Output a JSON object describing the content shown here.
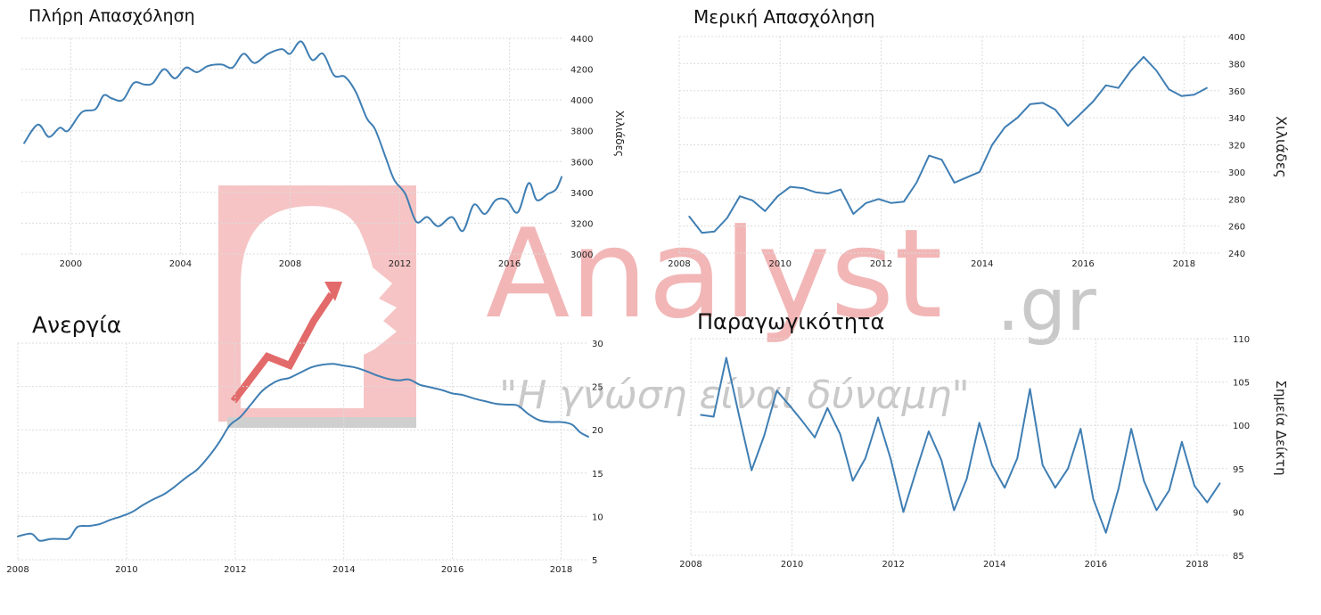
{
  "watermark": {
    "brand": "Analyst",
    "domain": ".gr",
    "slogan": "\"Η γνώση είναι δύναμη\""
  },
  "colors": {
    "line": "#3f7eb3",
    "grid": "#dcdcdc",
    "watermark": "#f2b6b6"
  },
  "chart_data": [
    {
      "type": "line",
      "title": "Πλήρη Απασχόληση",
      "ylabel": "Χιλιάδες",
      "xlim": [
        1998.2,
        2017.9
      ],
      "ylim": [
        3000,
        4400
      ],
      "xticks": [
        2000,
        2004,
        2008,
        2012,
        2016
      ],
      "yticks": [
        3000,
        3200,
        3400,
        3600,
        3800,
        4000,
        4200,
        4400
      ],
      "series": [
        {
          "x": [
            1998.3,
            1998.8,
            1999.2,
            1999.6,
            1999.9,
            2000.4,
            2000.9,
            2001.2,
            2001.5,
            2001.9,
            2002.3,
            2002.7,
            2003.0,
            2003.4,
            2003.8,
            2004.2,
            2004.6,
            2005.0,
            2005.5,
            2005.9,
            2006.3,
            2006.7,
            2007.2,
            2007.7,
            2008.0,
            2008.4,
            2008.8,
            2009.2,
            2009.6,
            2010.0,
            2010.4,
            2010.8,
            2011.1,
            2011.5,
            2011.8,
            2012.2,
            2012.6,
            2013.0,
            2013.4,
            2013.9,
            2014.3,
            2014.7,
            2015.1,
            2015.5,
            2015.9,
            2016.3,
            2016.7,
            2017.0,
            2017.4,
            2017.7,
            2017.9
          ],
          "y": [
            3720,
            3840,
            3760,
            3820,
            3800,
            3920,
            3940,
            4030,
            4010,
            4000,
            4110,
            4100,
            4110,
            4200,
            4140,
            4210,
            4180,
            4220,
            4230,
            4210,
            4300,
            4240,
            4300,
            4330,
            4300,
            4380,
            4260,
            4300,
            4160,
            4150,
            4050,
            3880,
            3810,
            3620,
            3480,
            3390,
            3210,
            3240,
            3180,
            3240,
            3150,
            3320,
            3260,
            3350,
            3350,
            3270,
            3460,
            3350,
            3390,
            3420,
            3500
          ]
        }
      ]
    },
    {
      "type": "line",
      "title": "Μερική Απασχόληση",
      "ylabel": "Χιλιάδες",
      "xlim": [
        2008.0,
        2018.7
      ],
      "ylim": [
        240,
        400
      ],
      "xticks": [
        2008,
        2010,
        2012,
        2014,
        2016,
        2018
      ],
      "yticks": [
        240,
        260,
        280,
        300,
        320,
        340,
        360,
        380,
        400
      ],
      "series": [
        {
          "x": [
            2008.2,
            2008.45,
            2008.7,
            2008.95,
            2009.2,
            2009.45,
            2009.7,
            2009.95,
            2010.2,
            2010.45,
            2010.7,
            2010.95,
            2011.2,
            2011.45,
            2011.7,
            2011.95,
            2012.2,
            2012.45,
            2012.7,
            2012.95,
            2013.2,
            2013.45,
            2013.7,
            2013.95,
            2014.2,
            2014.45,
            2014.7,
            2014.95,
            2015.2,
            2015.45,
            2015.7,
            2015.95,
            2016.2,
            2016.45,
            2016.7,
            2016.95,
            2017.2,
            2017.45,
            2017.7,
            2017.95,
            2018.2,
            2018.45
          ],
          "y": [
            267,
            255,
            256,
            266,
            282,
            279,
            271,
            282,
            289,
            288,
            285,
            284,
            287,
            269,
            277,
            280,
            277,
            278,
            292,
            312,
            309,
            292,
            296,
            300,
            320,
            333,
            340,
            350,
            351,
            346,
            334,
            343,
            352,
            364,
            362,
            375,
            385,
            375,
            361,
            356,
            357,
            362
          ]
        }
      ]
    },
    {
      "type": "line",
      "title": "Ανεργία",
      "ylabel": "",
      "xlim": [
        2008.0,
        2018.5
      ],
      "ylim": [
        5,
        30
      ],
      "xticks": [
        2008,
        2010,
        2012,
        2014,
        2016,
        2018
      ],
      "yticks": [
        5,
        10,
        15,
        20,
        25,
        30
      ],
      "series": [
        {
          "x": [
            2008.0,
            2008.25,
            2008.4,
            2008.6,
            2008.8,
            2008.95,
            2009.1,
            2009.3,
            2009.5,
            2009.7,
            2009.9,
            2010.1,
            2010.3,
            2010.5,
            2010.7,
            2010.9,
            2011.1,
            2011.3,
            2011.5,
            2011.7,
            2011.9,
            2012.1,
            2012.3,
            2012.5,
            2012.7,
            2012.85,
            2013.0,
            2013.2,
            2013.4,
            2013.6,
            2013.8,
            2014.0,
            2014.2,
            2014.4,
            2014.6,
            2014.8,
            2015.0,
            2015.2,
            2015.4,
            2015.6,
            2015.8,
            2016.0,
            2016.2,
            2016.4,
            2016.6,
            2016.8,
            2017.0,
            2017.2,
            2017.4,
            2017.6,
            2017.8,
            2018.0,
            2018.2,
            2018.35,
            2018.5
          ],
          "y": [
            7.7,
            8.0,
            7.2,
            7.4,
            7.4,
            7.5,
            8.8,
            8.9,
            9.1,
            9.6,
            10.0,
            10.5,
            11.3,
            12.0,
            12.6,
            13.5,
            14.5,
            15.4,
            16.8,
            18.5,
            20.5,
            21.5,
            23.0,
            24.5,
            25.4,
            25.8,
            26.0,
            26.6,
            27.2,
            27.5,
            27.6,
            27.4,
            27.2,
            26.8,
            26.3,
            25.9,
            25.7,
            25.8,
            25.2,
            24.9,
            24.6,
            24.2,
            24.0,
            23.6,
            23.3,
            23.0,
            22.9,
            22.8,
            21.8,
            21.1,
            20.9,
            20.9,
            20.6,
            19.7,
            19.2
          ]
        }
      ]
    },
    {
      "type": "line",
      "title": "Παραγωγικότητα",
      "ylabel": "Σημεία Δείκτη",
      "xlim": [
        2008.0,
        2018.6
      ],
      "ylim": [
        85,
        110
      ],
      "xticks": [
        2008,
        2010,
        2012,
        2014,
        2016,
        2018
      ],
      "yticks": [
        85,
        90,
        95,
        100,
        105,
        110
      ],
      "series": [
        {
          "x": [
            2008.2,
            2008.45,
            2008.7,
            2008.95,
            2009.2,
            2009.45,
            2009.7,
            2009.95,
            2010.2,
            2010.45,
            2010.7,
            2010.95,
            2011.2,
            2011.45,
            2011.7,
            2011.95,
            2012.2,
            2012.45,
            2012.7,
            2012.95,
            2013.2,
            2013.45,
            2013.7,
            2013.95,
            2014.2,
            2014.45,
            2014.7,
            2014.95,
            2015.2,
            2015.45,
            2015.7,
            2015.95,
            2016.2,
            2016.45,
            2016.7,
            2016.95,
            2017.2,
            2017.45,
            2017.7,
            2017.95,
            2018.2,
            2018.45
          ],
          "y": [
            101.2,
            101.0,
            107.8,
            101.2,
            94.8,
            98.8,
            104.0,
            102.3,
            100.5,
            98.6,
            102.0,
            99.0,
            93.6,
            96.2,
            100.9,
            96.1,
            90.0,
            94.7,
            99.3,
            96.0,
            90.2,
            93.8,
            100.3,
            95.4,
            92.8,
            96.2,
            104.2,
            95.4,
            92.8,
            95.0,
            99.6,
            91.5,
            87.6,
            92.7,
            99.6,
            93.6,
            90.2,
            92.5,
            98.1,
            93.0,
            91.1,
            93.3
          ]
        }
      ]
    }
  ]
}
